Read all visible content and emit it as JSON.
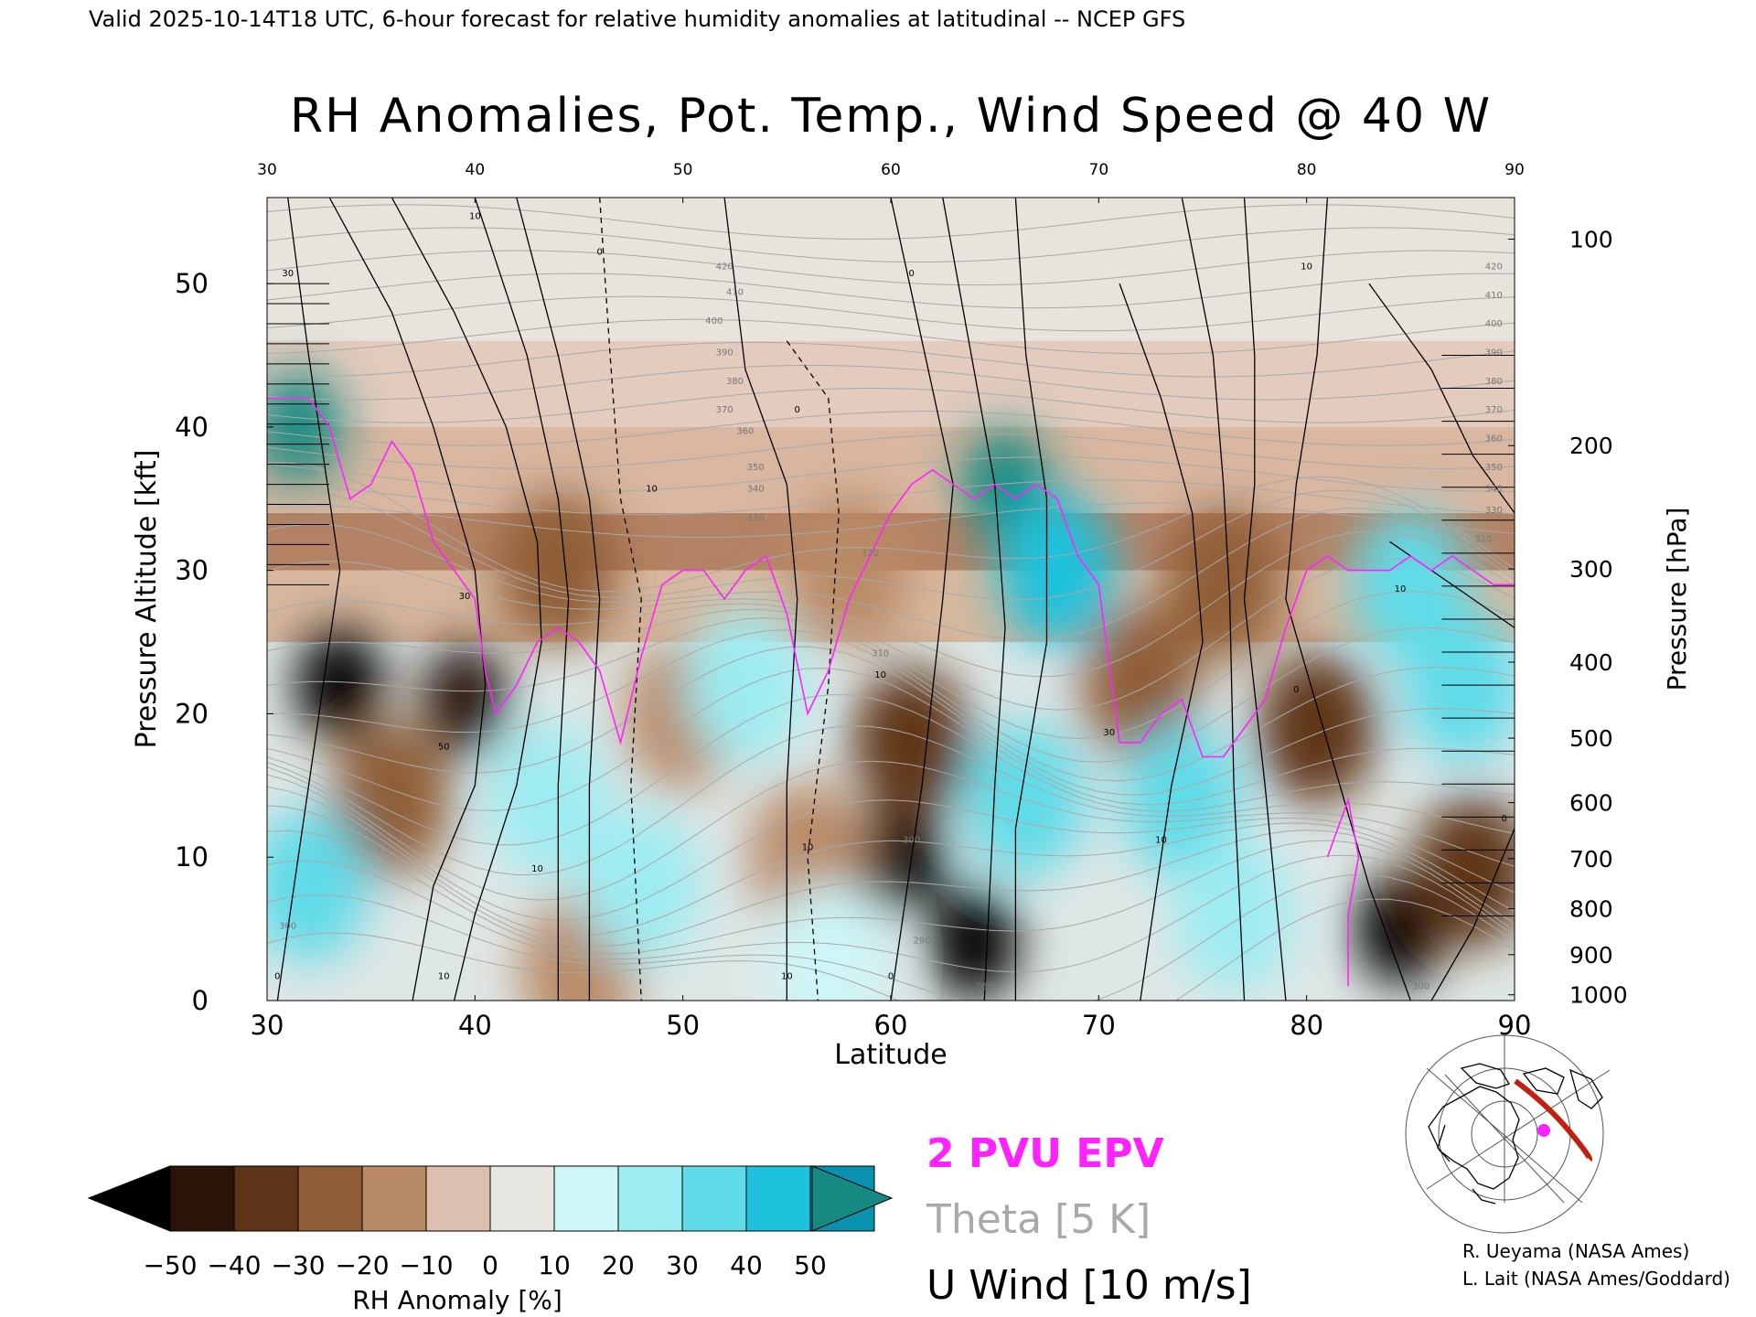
{
  "header": "Valid 2025-10-14T18 UTC, 6-hour forecast for relative humidity anomalies at latitudinal -- NCEP GFS",
  "chart_data": {
    "type": "heatmap",
    "title": "RH Anomalies, Pot. Temp., Wind Speed @ 40 W",
    "xlabel": "Latitude",
    "ylabel_left": "Pressure Altitude [kft]",
    "ylabel_right": "Pressure [hPa]",
    "xlim": [
      30,
      90
    ],
    "ylim": [
      0,
      56
    ],
    "x_ticks": [
      30,
      40,
      50,
      60,
      70,
      80,
      90
    ],
    "y_ticks_left": [
      0,
      10,
      20,
      30,
      40,
      50
    ],
    "pressure_ticks": [
      {
        "label": "100",
        "kft": 53.1
      },
      {
        "label": "200",
        "kft": 38.7
      },
      {
        "label": "300",
        "kft": 30.1
      },
      {
        "label": "400",
        "kft": 23.6
      },
      {
        "label": "500",
        "kft": 18.3
      },
      {
        "label": "600",
        "kft": 13.8
      },
      {
        "label": "700",
        "kft": 9.9
      },
      {
        "label": "800",
        "kft": 6.4
      },
      {
        "label": "900",
        "kft": 3.2
      },
      {
        "label": "1000",
        "kft": 0.4
      }
    ],
    "rh_anomaly_features": [
      {
        "lat": 33.5,
        "kft": 22,
        "value": -50
      },
      {
        "lat": 39.5,
        "kft": 21,
        "value": -45
      },
      {
        "lat": 36,
        "kft": 14,
        "value": -30
      },
      {
        "lat": 60.5,
        "kft": 10,
        "value": -50
      },
      {
        "lat": 61,
        "kft": 18,
        "value": -40
      },
      {
        "lat": 64,
        "kft": 4,
        "value": -50
      },
      {
        "lat": 84.5,
        "kft": 5,
        "value": -50
      },
      {
        "lat": 88,
        "kft": 9,
        "value": -40
      },
      {
        "lat": 80.5,
        "kft": 19,
        "value": -40
      },
      {
        "lat": 72,
        "kft": 22,
        "value": -30
      },
      {
        "lat": 44,
        "kft": 30,
        "value": -30
      },
      {
        "lat": 76,
        "kft": 29,
        "value": -30
      },
      {
        "lat": 58,
        "kft": 30,
        "value": -20
      },
      {
        "lat": 56,
        "kft": 10,
        "value": -20
      },
      {
        "lat": 50,
        "kft": 20,
        "value": -15
      },
      {
        "lat": 45,
        "kft": 2,
        "value": -15
      },
      {
        "lat": 31.5,
        "kft": 40,
        "value": 50
      },
      {
        "lat": 65.5,
        "kft": 36,
        "value": 50
      },
      {
        "lat": 68,
        "kft": 30,
        "value": 40
      },
      {
        "lat": 43.5,
        "kft": 14,
        "value": 25
      },
      {
        "lat": 48,
        "kft": 8,
        "value": 20
      },
      {
        "lat": 53,
        "kft": 22,
        "value": 20
      },
      {
        "lat": 66.5,
        "kft": 14,
        "value": 30
      },
      {
        "lat": 74,
        "kft": 14,
        "value": 30
      },
      {
        "lat": 76.5,
        "kft": 6,
        "value": 25
      },
      {
        "lat": 85,
        "kft": 29,
        "value": 30
      },
      {
        "lat": 87.5,
        "kft": 22,
        "value": 35
      },
      {
        "lat": 32,
        "kft": 8,
        "value": 30
      },
      {
        "lat": 57,
        "kft": 3,
        "value": 15
      }
    ],
    "contour_labels": [
      {
        "series": "theta",
        "text": "420",
        "lat": 52,
        "kft": 51
      },
      {
        "series": "theta",
        "text": "410",
        "lat": 52.5,
        "kft": 49.2
      },
      {
        "series": "theta",
        "text": "400",
        "lat": 51.5,
        "kft": 47.2
      },
      {
        "series": "theta",
        "text": "390",
        "lat": 52,
        "kft": 45
      },
      {
        "series": "theta",
        "text": "380",
        "lat": 52.5,
        "kft": 43
      },
      {
        "series": "theta",
        "text": "370",
        "lat": 52,
        "kft": 41
      },
      {
        "series": "theta",
        "text": "360",
        "lat": 53,
        "kft": 39.5
      },
      {
        "series": "theta",
        "text": "350",
        "lat": 53.5,
        "kft": 37
      },
      {
        "series": "theta",
        "text": "340",
        "lat": 53.5,
        "kft": 35.5
      },
      {
        "series": "theta",
        "text": "330",
        "lat": 53.5,
        "kft": 33.5
      },
      {
        "series": "theta",
        "text": "320",
        "lat": 59,
        "kft": 31
      },
      {
        "series": "theta",
        "text": "310",
        "lat": 59.5,
        "kft": 24
      },
      {
        "series": "theta",
        "text": "300",
        "lat": 61,
        "kft": 11
      },
      {
        "series": "theta",
        "text": "290",
        "lat": 61.5,
        "kft": 4
      },
      {
        "series": "theta",
        "text": "300",
        "lat": 31,
        "kft": 5
      },
      {
        "series": "theta",
        "text": "300",
        "lat": 85.5,
        "kft": 0.8
      },
      {
        "series": "theta",
        "text": "280",
        "lat": 64.5,
        "kft": 0.8
      },
      {
        "series": "theta",
        "text": "420",
        "lat": 89,
        "kft": 51
      },
      {
        "series": "theta",
        "text": "410",
        "lat": 89,
        "kft": 49
      },
      {
        "series": "theta",
        "text": "400",
        "lat": 89,
        "kft": 47
      },
      {
        "series": "theta",
        "text": "390",
        "lat": 89,
        "kft": 45
      },
      {
        "series": "theta",
        "text": "380",
        "lat": 89,
        "kft": 43
      },
      {
        "series": "theta",
        "text": "370",
        "lat": 89,
        "kft": 41
      },
      {
        "series": "theta",
        "text": "360",
        "lat": 89,
        "kft": 39
      },
      {
        "series": "theta",
        "text": "350",
        "lat": 89,
        "kft": 37
      },
      {
        "series": "theta",
        "text": "340",
        "lat": 89,
        "kft": 35.5
      },
      {
        "series": "theta",
        "text": "330",
        "lat": 89,
        "kft": 34
      },
      {
        "series": "theta",
        "text": "320",
        "lat": 88.5,
        "kft": 32
      },
      {
        "series": "wind",
        "text": "10",
        "lat": 40,
        "kft": 54.5
      },
      {
        "series": "wind",
        "text": "0",
        "lat": 46,
        "kft": 52
      },
      {
        "series": "wind",
        "text": "0",
        "lat": 61,
        "kft": 50.5
      },
      {
        "series": "wind",
        "text": "10",
        "lat": 80,
        "kft": 51
      },
      {
        "series": "wind",
        "text": "30",
        "lat": 31,
        "kft": 50.5
      },
      {
        "series": "wind",
        "text": "10",
        "lat": 48.5,
        "kft": 35.5
      },
      {
        "series": "wind",
        "text": "0",
        "lat": 55.5,
        "kft": 41
      },
      {
        "series": "wind",
        "text": "10",
        "lat": 59.5,
        "kft": 22.5
      },
      {
        "series": "wind",
        "text": "10",
        "lat": 56,
        "kft": 10.5
      },
      {
        "series": "wind",
        "text": "10",
        "lat": 55,
        "kft": 1.5
      },
      {
        "series": "wind",
        "text": "0",
        "lat": 60,
        "kft": 1.5
      },
      {
        "series": "wind",
        "text": "10",
        "lat": 43,
        "kft": 9
      },
      {
        "series": "wind",
        "text": "10",
        "lat": 38.5,
        "kft": 1.5
      },
      {
        "series": "wind",
        "text": "0",
        "lat": 30.5,
        "kft": 1.5
      },
      {
        "series": "wind",
        "text": "30",
        "lat": 39.5,
        "kft": 28
      },
      {
        "series": "wind",
        "text": "50",
        "lat": 38.5,
        "kft": 17.5
      },
      {
        "series": "wind",
        "text": "30",
        "lat": 70.5,
        "kft": 18.5
      },
      {
        "series": "wind",
        "text": "10",
        "lat": 73,
        "kft": 11
      },
      {
        "series": "wind",
        "text": "10",
        "lat": 84.5,
        "kft": 28.5
      },
      {
        "series": "wind",
        "text": "0",
        "lat": 79.5,
        "kft": 21.5
      },
      {
        "series": "wind",
        "text": "0",
        "lat": 89.5,
        "kft": 12.5
      }
    ],
    "legend": {
      "epv": "2 PVU EPV",
      "theta": "Theta [5 K]",
      "wind": "U Wind [10 m/s]"
    },
    "colorbar": {
      "label": "RH Anomaly [%]",
      "ticks": [
        "−50",
        "−40",
        "−30",
        "−20",
        "−10",
        "0",
        "10",
        "20",
        "30",
        "40",
        "50"
      ],
      "colors": [
        "#000000",
        "#2b130a",
        "#5e3418",
        "#8f5d36",
        "#b98a66",
        "#dcbfae",
        "#e8e6e0",
        "#cdf6f8",
        "#9cecf2",
        "#5fdbe8",
        "#1fc2dc",
        "#0892b0",
        "#168a82"
      ]
    },
    "colors": {
      "epv": "#ff22ff",
      "theta": "#a9a9a9",
      "wind": "#000000"
    }
  },
  "credits": {
    "line1": "R. Ueyama (NASA Ames)",
    "line2": "L. Lait (NASA Ames/Goddard)"
  }
}
